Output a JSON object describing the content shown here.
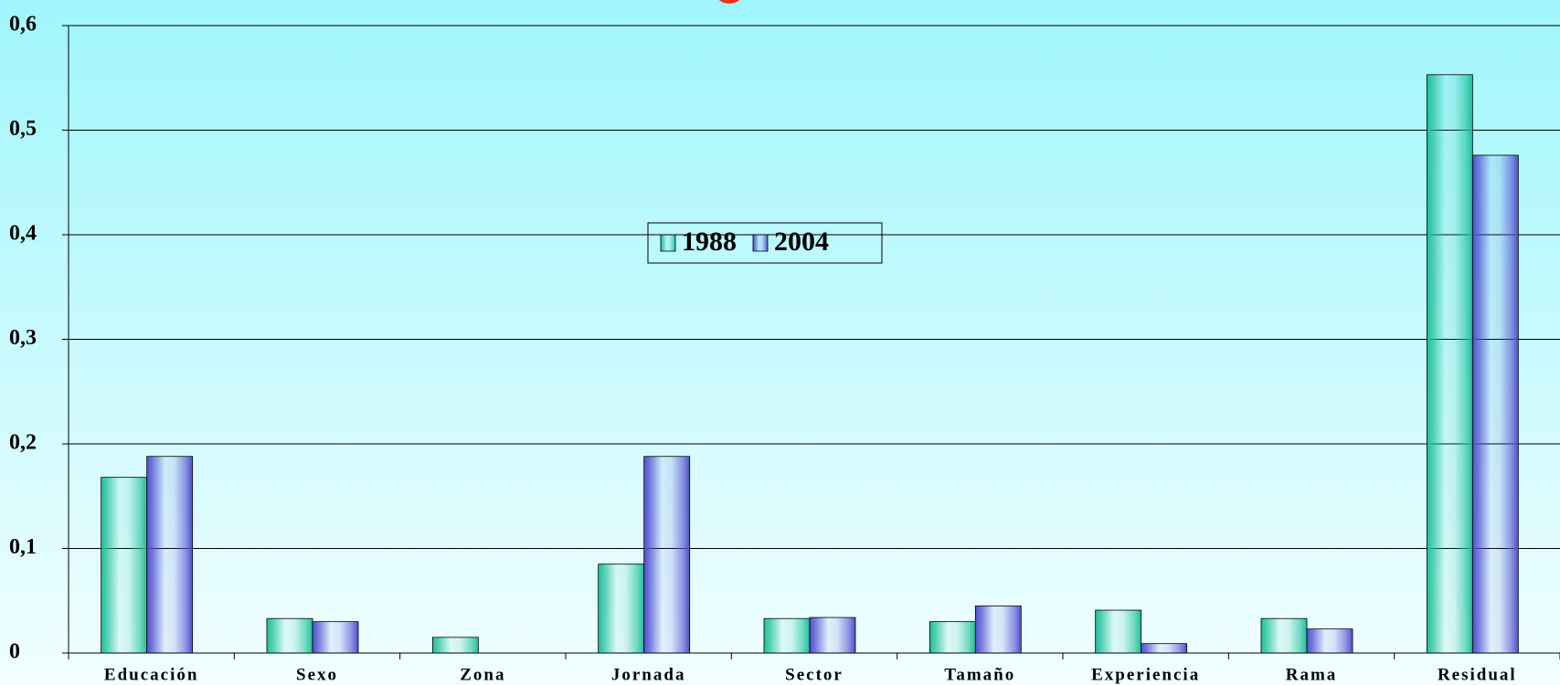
{
  "chart_data": {
    "type": "bar",
    "categories": [
      "Educación",
      "Sexo",
      "Zona",
      "Jornada",
      "Sector",
      "Tamaño",
      "Experiencia",
      "Rama",
      "Residual"
    ],
    "series": [
      {
        "name": "1988",
        "color": "#1fbf9a",
        "values": [
          0.168,
          0.033,
          0.015,
          0.085,
          0.033,
          0.03,
          0.041,
          0.033,
          0.553
        ]
      },
      {
        "name": "2004",
        "color": "#4f4fcf",
        "values": [
          0.188,
          0.03,
          null,
          0.188,
          0.034,
          0.045,
          0.009,
          0.023,
          0.476
        ]
      }
    ],
    "ylim": [
      0,
      0.6
    ],
    "yticks": [
      0,
      {
        "value": 0.1,
        "label": "0,1"
      },
      {
        "value": 0.2,
        "label": "0,2"
      },
      {
        "value": 0.3,
        "label": "0,3"
      },
      {
        "value": 0.4,
        "label": "0,4"
      },
      {
        "value": 0.5,
        "label": "0,5"
      },
      {
        "value": 0.6,
        "label": "0,6"
      }
    ],
    "grid": true
  }
}
